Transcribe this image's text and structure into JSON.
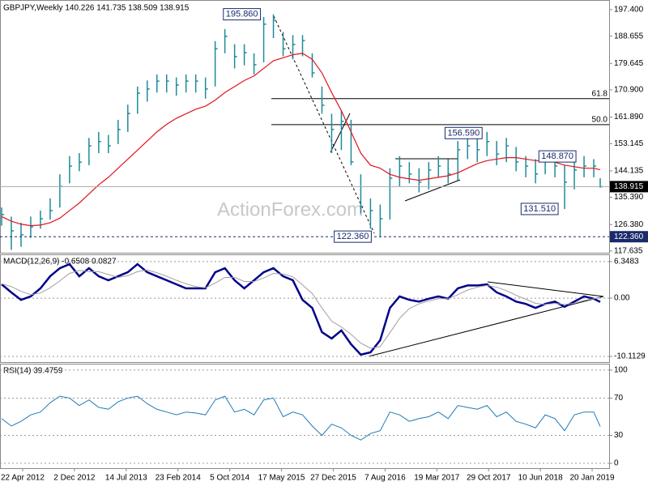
{
  "chart_data": [
    {
      "type": "hlc",
      "title": "GBPJPY,Weekly  140.226 141.735 138.509 138.915",
      "watermark": "ActionForex.com",
      "color": "#1f8b99",
      "ma_color": "#e0141e",
      "xlim": [
        -1,
        375.5
      ],
      "x": [
        0,
        6,
        12,
        18,
        24,
        30,
        36,
        42,
        48,
        54,
        60,
        66,
        72,
        78,
        84,
        90,
        96,
        102,
        108,
        114,
        120,
        126,
        132,
        138,
        144,
        150,
        156,
        162,
        168,
        174,
        180,
        186,
        192,
        198,
        204,
        210,
        216,
        222,
        228,
        234,
        240,
        246,
        252,
        258,
        264,
        270,
        276,
        282,
        288,
        294,
        300,
        306,
        312,
        318,
        324,
        330,
        336,
        342,
        348,
        354,
        360,
        366,
        370
      ],
      "high": [
        132,
        129,
        127,
        129,
        131,
        135,
        143,
        149,
        150,
        155,
        157,
        156,
        161,
        166,
        172,
        174,
        176,
        176,
        175,
        176,
        176,
        175,
        187,
        191,
        186,
        186,
        183,
        195,
        195.86,
        190,
        189,
        189,
        183,
        172,
        163,
        164,
        161,
        143,
        135,
        133,
        145,
        149,
        147,
        145,
        147,
        149,
        148,
        154,
        156,
        155,
        157,
        154,
        155,
        152,
        149,
        148,
        150.5,
        149,
        146,
        148,
        149,
        148,
        141.7
      ],
      "low": [
        126,
        118,
        119,
        122,
        125,
        128,
        132,
        140,
        144,
        146,
        150,
        150,
        153,
        157,
        163,
        167,
        170,
        170,
        169,
        170,
        170,
        168,
        172,
        183,
        178,
        179,
        176,
        180,
        188,
        182,
        181,
        182,
        175,
        163,
        150,
        151,
        146,
        130,
        125,
        122.36,
        128,
        139,
        140,
        137,
        138,
        142,
        140,
        141,
        148,
        147,
        149,
        146,
        147,
        144,
        142,
        140,
        143,
        142,
        131.51,
        138,
        142,
        142,
        138.5
      ],
      "close": [
        129.7,
        124.3,
        123,
        125.6,
        128.3,
        131,
        139,
        145.7,
        147,
        152.4,
        153.8,
        152.4,
        157.8,
        163.1,
        169.8,
        171.2,
        173.8,
        173.8,
        172.5,
        173.8,
        173.8,
        171.2,
        184.5,
        188.6,
        181.9,
        183.2,
        179.2,
        192.6,
        193.9,
        184.5,
        185.9,
        187.2,
        176.5,
        165.8,
        157.8,
        160.5,
        147.1,
        132.3,
        131,
        128.3,
        141.7,
        145.7,
        143.1,
        140.4,
        144.4,
        145.7,
        143.1,
        151.1,
        152.4,
        151.1,
        153.8,
        149.7,
        152.4,
        147.1,
        145.7,
        143.1,
        148.4,
        145.7,
        140.4,
        144.4,
        145.7,
        145.7,
        138.915
      ],
      "ma": [
        129,
        127.5,
        126.5,
        126,
        126.2,
        127,
        128.5,
        131,
        133.5,
        136.5,
        139.5,
        142,
        145,
        148,
        151,
        154,
        157,
        159.5,
        161.5,
        163,
        164.5,
        165.5,
        167.5,
        170,
        172,
        174,
        175.5,
        178,
        180.5,
        181.5,
        182.5,
        183,
        181,
        176.5,
        170,
        164,
        157,
        150,
        146,
        145,
        143,
        142,
        141.5,
        141,
        141.5,
        142,
        142.5,
        143.5,
        145,
        146.5,
        147.5,
        148,
        148.5,
        148.5,
        148,
        147.5,
        147.5,
        147,
        146,
        145.5,
        145,
        145,
        144.5
      ],
      "ylim": [
        116.8,
        200.6
      ],
      "yticks": [
        {
          "value": 197.4,
          "label": "197.400"
        },
        188.655,
        179.645,
        {
          "value": 170.9,
          "label": "170.900"
        },
        {
          "value": 161.89,
          "label": "161.890"
        },
        153.145,
        144.135,
        {
          "value": 135.39,
          "label": "135.390"
        },
        {
          "value": 126.38,
          "label": "126.380"
        },
        117.635
      ],
      "levels": [
        {
          "value": 168.0,
          "label": "61.8"
        },
        {
          "value": 159.4,
          "label": "50.0"
        }
      ],
      "annotations": [
        {
          "x": 168,
          "value": 195.86,
          "label": "195.860"
        },
        {
          "x": 297,
          "value": 156.59,
          "label": "156.590"
        },
        {
          "x": 355,
          "value": 148.87,
          "label": "148.870"
        },
        {
          "x": 348,
          "value": 131.51,
          "label": "131.510"
        },
        {
          "x": 231,
          "value": 122.36,
          "label": "122.360",
          "style": "dashed"
        }
      ]
    },
    {
      "type": "line",
      "title": "MACD(12,26,9) -0.6508 0.0827",
      "series": [
        {
          "color": "#00008b",
          "values": [
            2.4,
            1,
            -0.3,
            0.3,
            1.7,
            3.8,
            5.2,
            5.9,
            3.8,
            5.2,
            3.8,
            3.1,
            3.8,
            4.5,
            5.9,
            4.5,
            3.8,
            3.1,
            2.4,
            1.7,
            1.7,
            1.7,
            4.5,
            5.2,
            3.1,
            1.7,
            3.1,
            4.5,
            5.2,
            3.8,
            3.1,
            -0.3,
            -1.7,
            -5.9,
            -7,
            -5.6,
            -8,
            -9.8,
            -9.4,
            -7.3,
            -1.7,
            0.3,
            -0.3,
            -0.6,
            -0.1,
            0.3,
            -0.1,
            1.7,
            2.2,
            2.2,
            2.4,
            1,
            0.3,
            -0.6,
            -1,
            -1.7,
            -1,
            -0.6,
            -1.5,
            -0.6,
            0.3,
            -0.1,
            -0.6508
          ]
        },
        {
          "color": "#a0a0a0",
          "values": [
            2.5,
            2,
            1.2,
            0.6,
            0.9,
            1.8,
            3,
            4.3,
            4.8,
            4.6,
            4.6,
            4.1,
            3.6,
            3.9,
            4.6,
            4.9,
            4.4,
            3.8,
            3.1,
            2.5,
            2,
            1.8,
            2.6,
            3.6,
            3.6,
            2.9,
            2.9,
            3.5,
            4.3,
            4.2,
            3.7,
            2.3,
            0.8,
            -1.7,
            -4,
            -5,
            -6.3,
            -7.8,
            -8.7,
            -8.4,
            -6,
            -3.5,
            -1.8,
            -1,
            -0.5,
            -0.1,
            -0.1,
            0.6,
            1.4,
            1.9,
            2.2,
            1.9,
            1.3,
            0.5,
            -0.2,
            -0.9,
            -1.1,
            -0.9,
            -1.1,
            -0.9,
            -0.4,
            -0.1,
            0.0827
          ]
        }
      ],
      "ylim": [
        -11.09,
        7.46
      ],
      "yticks": [
        6.3483,
        {
          "value": 0,
          "label": "0.00"
        },
        -10.1129
      ]
    },
    {
      "type": "line",
      "title": "RSI(14) 39.4759",
      "series": [
        {
          "color": "#1e7ab8",
          "values": [
            48,
            40,
            45,
            52,
            55,
            65,
            72,
            70,
            62,
            68,
            60,
            58,
            66,
            70,
            72,
            64,
            58,
            55,
            52,
            55,
            54,
            52,
            68,
            72,
            55,
            58,
            52,
            68,
            70,
            50,
            55,
            52,
            40,
            30,
            42,
            38,
            30,
            25,
            32,
            35,
            55,
            52,
            45,
            48,
            50,
            55,
            48,
            62,
            60,
            58,
            62,
            50,
            55,
            45,
            42,
            38,
            52,
            48,
            35,
            52,
            55,
            55,
            39.4759
          ]
        }
      ],
      "ylim": [
        -5.2,
        106
      ],
      "yticks": [
        100,
        70,
        30,
        0
      ],
      "xticks": [
        {
          "value": 13,
          "label": "22 Apr 2012"
        },
        {
          "value": 45,
          "label": "2 Dec 2012"
        },
        {
          "value": 77,
          "label": "14 Jul 2013"
        },
        {
          "value": 109,
          "label": "23 Feb 2014"
        },
        {
          "value": 141,
          "label": "5 Oct 2014"
        },
        {
          "value": 173,
          "label": "17 May 2015"
        },
        {
          "value": 205,
          "label": "27 Dec 2015"
        },
        {
          "value": 237,
          "label": "7 Aug 2016"
        },
        {
          "value": 269,
          "label": "19 Mar 2017"
        },
        {
          "value": 301,
          "label": "29 Oct 2017"
        },
        {
          "value": 333,
          "label": "10 Jun 2018"
        },
        {
          "value": 365,
          "label": "20 Jan 2019"
        }
      ]
    }
  ]
}
